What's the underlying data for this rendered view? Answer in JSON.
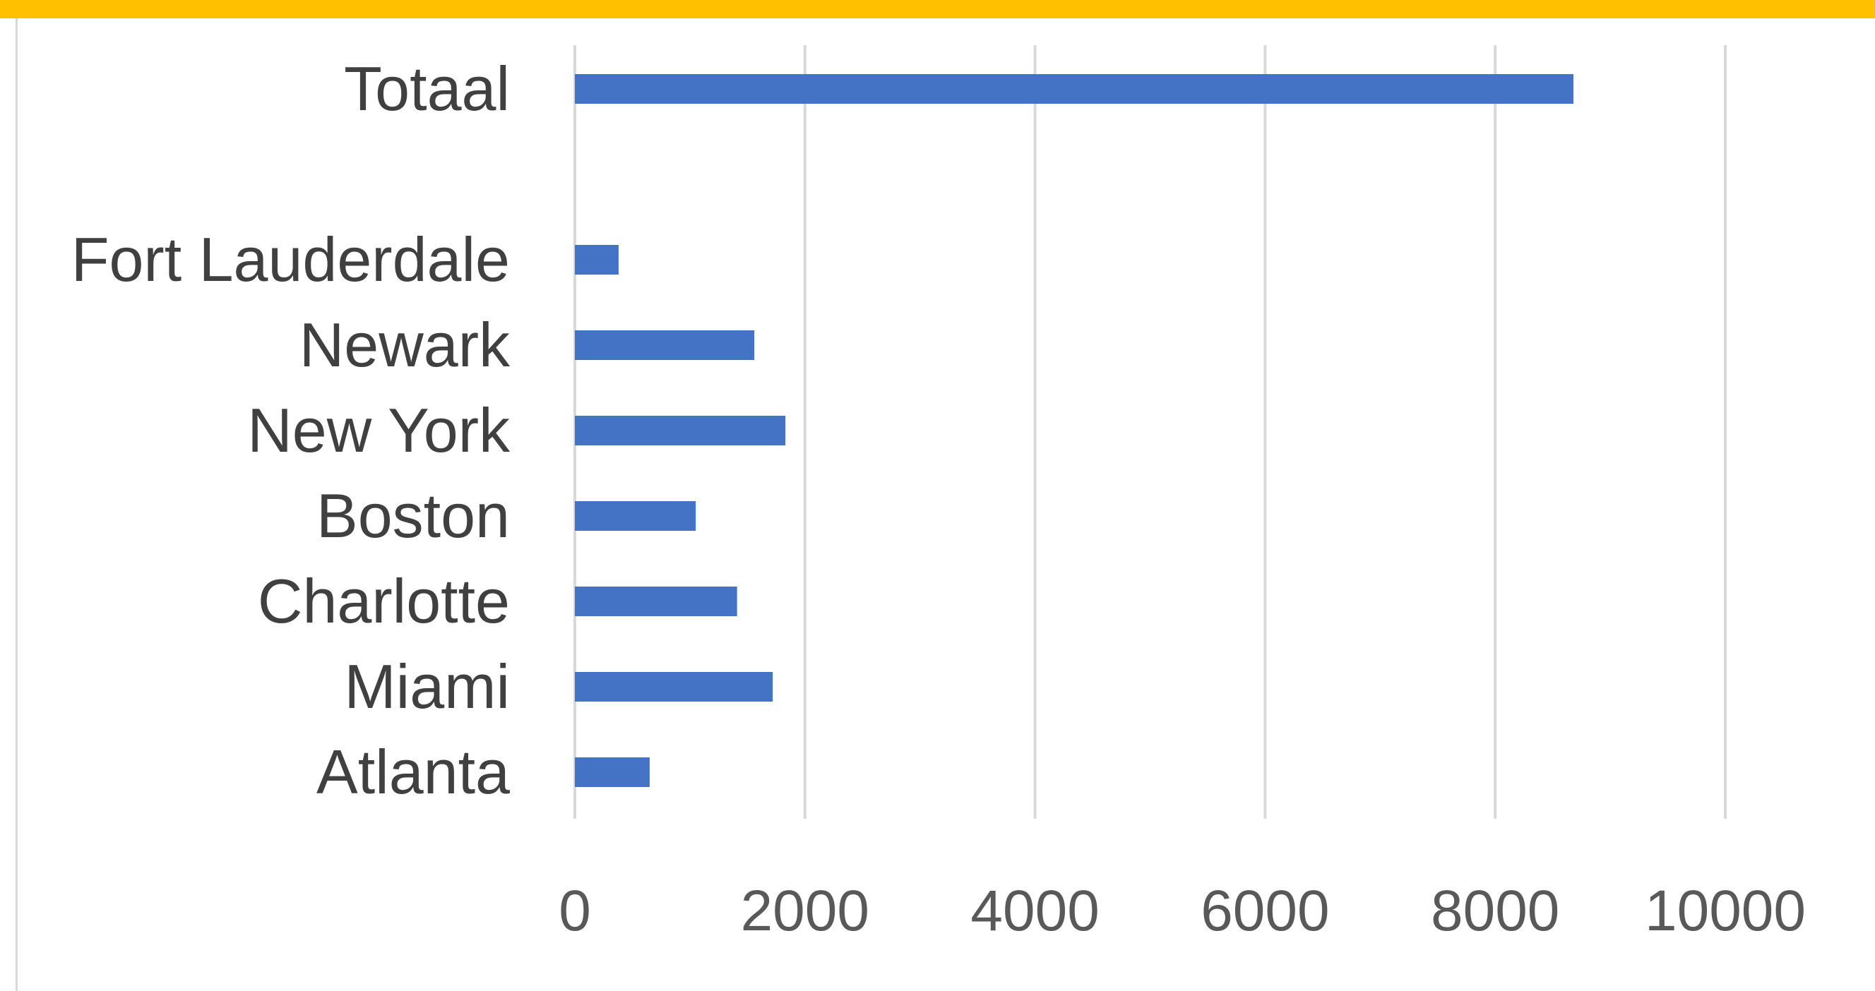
{
  "chart_data": {
    "type": "bar",
    "orientation": "horizontal",
    "title": "",
    "xlabel": "",
    "ylabel": "",
    "categories": [
      "Totaal",
      "",
      "Fort Lauderdale",
      "Newark",
      "New York",
      "Boston",
      "Charlotte",
      "Miami",
      "Atlanta"
    ],
    "values": [
      8680,
      null,
      380,
      1560,
      1830,
      1050,
      1410,
      1720,
      650
    ],
    "xlim": [
      0,
      10000
    ],
    "xticks": [
      "0",
      "2000",
      "4000",
      "6000",
      "8000",
      "10000"
    ],
    "grid": true,
    "legend": "none",
    "bar_color": "#4472c4",
    "accent_color": "#ffc000"
  }
}
